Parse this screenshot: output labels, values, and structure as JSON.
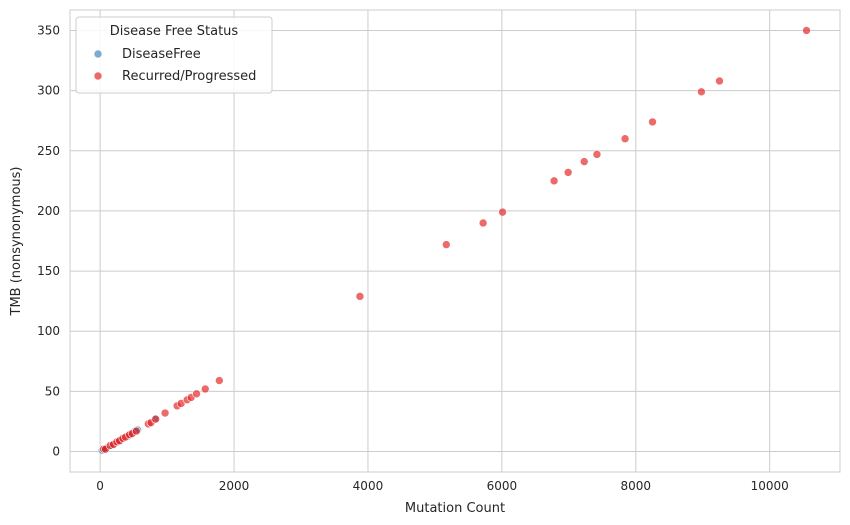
{
  "chart_data": {
    "type": "scatter",
    "title": "",
    "xlabel": "Mutation Count",
    "ylabel": "TMB (nonsynonymous)",
    "xlim": [
      -450,
      11050
    ],
    "ylim": [
      -17,
      367
    ],
    "xticks": [
      0,
      2000,
      4000,
      6000,
      8000,
      10000
    ],
    "xtick_labels": [
      "0",
      "2000",
      "4000",
      "6000",
      "8000",
      "10000"
    ],
    "yticks": [
      0,
      50,
      100,
      150,
      200,
      250,
      300,
      350
    ],
    "ytick_labels": [
      "0",
      "50",
      "100",
      "150",
      "200",
      "250",
      "300",
      "350"
    ],
    "grid": true,
    "legend": {
      "title": "Disease Free Status",
      "placement": "top-left"
    },
    "series": [
      {
        "name": "DiseaseFree",
        "color": "#377eb8",
        "points": [
          {
            "x": 30,
            "y": 1
          },
          {
            "x": 60,
            "y": 2
          },
          {
            "x": 100,
            "y": 3
          },
          {
            "x": 180,
            "y": 5
          },
          {
            "x": 300,
            "y": 9
          },
          {
            "x": 420,
            "y": 13
          },
          {
            "x": 520,
            "y": 17
          },
          {
            "x": 560,
            "y": 18
          },
          {
            "x": 820,
            "y": 27
          }
        ]
      },
      {
        "name": "Recurred/Progressed",
        "color": "#e41a1c",
        "points": [
          {
            "x": 50,
            "y": 2
          },
          {
            "x": 80,
            "y": 2
          },
          {
            "x": 150,
            "y": 5
          },
          {
            "x": 200,
            "y": 6
          },
          {
            "x": 250,
            "y": 8
          },
          {
            "x": 290,
            "y": 9
          },
          {
            "x": 340,
            "y": 11
          },
          {
            "x": 380,
            "y": 12
          },
          {
            "x": 440,
            "y": 14
          },
          {
            "x": 480,
            "y": 15
          },
          {
            "x": 540,
            "y": 17
          },
          {
            "x": 720,
            "y": 23
          },
          {
            "x": 760,
            "y": 24
          },
          {
            "x": 830,
            "y": 27
          },
          {
            "x": 970,
            "y": 32
          },
          {
            "x": 1150,
            "y": 38
          },
          {
            "x": 1210,
            "y": 40
          },
          {
            "x": 1300,
            "y": 43
          },
          {
            "x": 1360,
            "y": 45
          },
          {
            "x": 1440,
            "y": 48
          },
          {
            "x": 1570,
            "y": 52
          },
          {
            "x": 1780,
            "y": 59
          },
          {
            "x": 3880,
            "y": 129
          },
          {
            "x": 5170,
            "y": 172
          },
          {
            "x": 5720,
            "y": 190
          },
          {
            "x": 6010,
            "y": 199
          },
          {
            "x": 6780,
            "y": 225
          },
          {
            "x": 6990,
            "y": 232
          },
          {
            "x": 7230,
            "y": 241
          },
          {
            "x": 7420,
            "y": 247
          },
          {
            "x": 7840,
            "y": 260
          },
          {
            "x": 8250,
            "y": 274
          },
          {
            "x": 8980,
            "y": 299
          },
          {
            "x": 9250,
            "y": 308
          },
          {
            "x": 10550,
            "y": 350
          }
        ]
      }
    ]
  }
}
